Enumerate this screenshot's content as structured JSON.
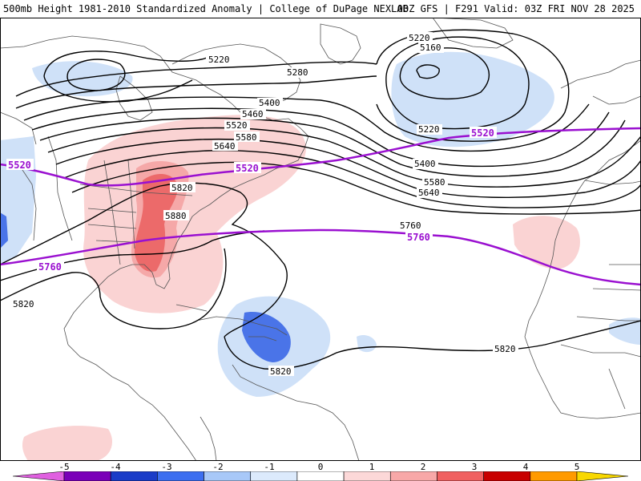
{
  "header": {
    "left": "500mb Height 1981-2010 Standardized Anomaly | College of DuPage NEXLAB",
    "right": "00Z GFS | F291 Valid: 03Z FRI NOV 28 2025"
  },
  "map": {
    "contour_labels": {
      "h5220_a": "5220",
      "h5220_b": "5220",
      "h5220_c": "5220",
      "h5160": "5160",
      "h5280": "5280",
      "h5400_a": "5400",
      "h5400_b": "5400",
      "h5460": "5460",
      "h5520_a": "5520",
      "h5520_b": "5520",
      "h5520_c": "5520",
      "h5580_a": "5580",
      "h5580_b": "5580",
      "h5640_a": "5640",
      "h5640_b": "5640",
      "h5760_a": "5760",
      "h5760_b": "5760",
      "h5760_c": "5760",
      "h5820_a": "5820",
      "h5820_b": "5820",
      "h5820_c": "5820",
      "h5820_d": "5820",
      "h5880": "5880"
    }
  },
  "colorbar": {
    "ticks": [
      "-5",
      "-4",
      "-3",
      "-2",
      "-1",
      "0",
      "1",
      "2",
      "3",
      "4",
      "5"
    ],
    "colors": [
      "#e060e0",
      "#7a00b8",
      "#1a3cc8",
      "#3c6ef0",
      "#a8c8f8",
      "#dceafc",
      "#ffffff",
      "#fcd8d8",
      "#f8a8a8",
      "#f06060",
      "#c80000",
      "#ff9a00",
      "#f8d800"
    ]
  }
}
